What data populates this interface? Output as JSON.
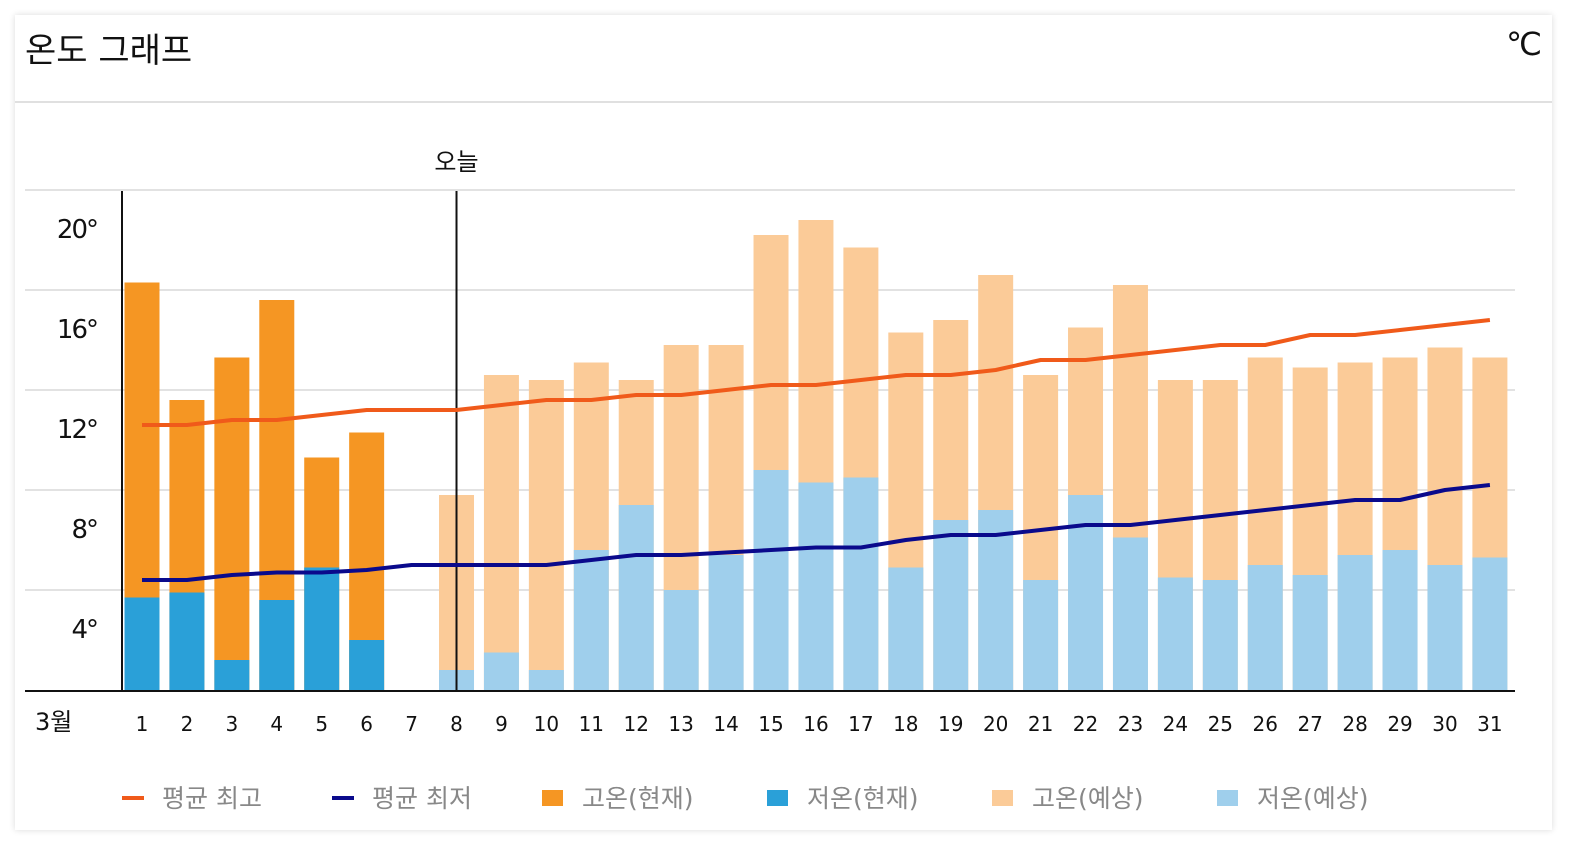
{
  "chart_data": {
    "type": "bar",
    "title": "온도 그래프",
    "unit": "℃",
    "today_label": "오늘",
    "today_day": 8,
    "month_label": "3월",
    "ylim": [
      0,
      20
    ],
    "yticks": [
      4,
      8,
      12,
      16,
      20
    ],
    "ytick_labels": [
      "4°",
      "8°",
      "12°",
      "16°",
      "20°"
    ],
    "grid": true,
    "legend_placement": "bottom",
    "categories": [
      1,
      2,
      3,
      4,
      5,
      6,
      7,
      8,
      9,
      10,
      11,
      12,
      13,
      14,
      15,
      16,
      17,
      18,
      19,
      20,
      21,
      22,
      23,
      24,
      25,
      26,
      27,
      28,
      29,
      30,
      31
    ],
    "series": [
      {
        "name": "평균 최고",
        "kind": "line",
        "color": "#f05a1a",
        "values": [
          10.6,
          10.6,
          10.8,
          10.8,
          11.0,
          11.2,
          11.2,
          11.2,
          11.4,
          11.6,
          11.6,
          11.8,
          11.8,
          12.0,
          12.2,
          12.2,
          12.4,
          12.6,
          12.6,
          12.8,
          13.2,
          13.2,
          13.4,
          13.6,
          13.8,
          13.8,
          14.2,
          14.2,
          14.4,
          14.6,
          14.8
        ]
      },
      {
        "name": "평균 최저",
        "kind": "line",
        "color": "#0a0a8c",
        "values": [
          4.4,
          4.4,
          4.6,
          4.7,
          4.7,
          4.8,
          5.0,
          5.0,
          5.0,
          5.0,
          5.2,
          5.4,
          5.4,
          5.5,
          5.6,
          5.7,
          5.7,
          6.0,
          6.2,
          6.2,
          6.4,
          6.6,
          6.6,
          6.8,
          7.0,
          7.2,
          7.4,
          7.6,
          7.6,
          8.0,
          8.2
        ]
      },
      {
        "name": "고온(현재)",
        "kind": "bar",
        "color": "#f59623",
        "values": [
          16.3,
          11.6,
          13.3,
          15.6,
          9.3,
          10.3,
          null,
          null,
          null,
          null,
          null,
          null,
          null,
          null,
          null,
          null,
          null,
          null,
          null,
          null,
          null,
          null,
          null,
          null,
          null,
          null,
          null,
          null,
          null,
          null,
          null
        ]
      },
      {
        "name": "저온(현재)",
        "kind": "bar",
        "color": "#2aa0d8",
        "values": [
          3.7,
          3.9,
          1.2,
          3.6,
          4.9,
          2.0,
          null,
          null,
          null,
          null,
          null,
          null,
          null,
          null,
          null,
          null,
          null,
          null,
          null,
          null,
          null,
          null,
          null,
          null,
          null,
          null,
          null,
          null,
          null,
          null,
          null
        ]
      },
      {
        "name": "고온(예상)",
        "kind": "bar",
        "color": "#fbcb98",
        "values": [
          null,
          null,
          null,
          null,
          null,
          null,
          null,
          7.8,
          12.6,
          12.4,
          13.1,
          12.4,
          13.8,
          13.8,
          18.2,
          18.8,
          17.7,
          14.3,
          14.8,
          16.6,
          12.6,
          14.5,
          16.2,
          12.4,
          12.4,
          13.3,
          12.9,
          13.1,
          13.3,
          13.7,
          13.3
        ]
      },
      {
        "name": "저온(예상)",
        "kind": "bar",
        "color": "#9fcfec",
        "values": [
          null,
          null,
          null,
          null,
          null,
          null,
          null,
          0.8,
          1.5,
          0.8,
          5.6,
          7.4,
          4.0,
          5.4,
          8.8,
          8.3,
          8.5,
          4.9,
          6.8,
          7.2,
          4.4,
          7.8,
          6.1,
          4.5,
          4.4,
          5.0,
          4.6,
          5.4,
          5.6,
          5.0,
          5.3
        ]
      }
    ]
  }
}
